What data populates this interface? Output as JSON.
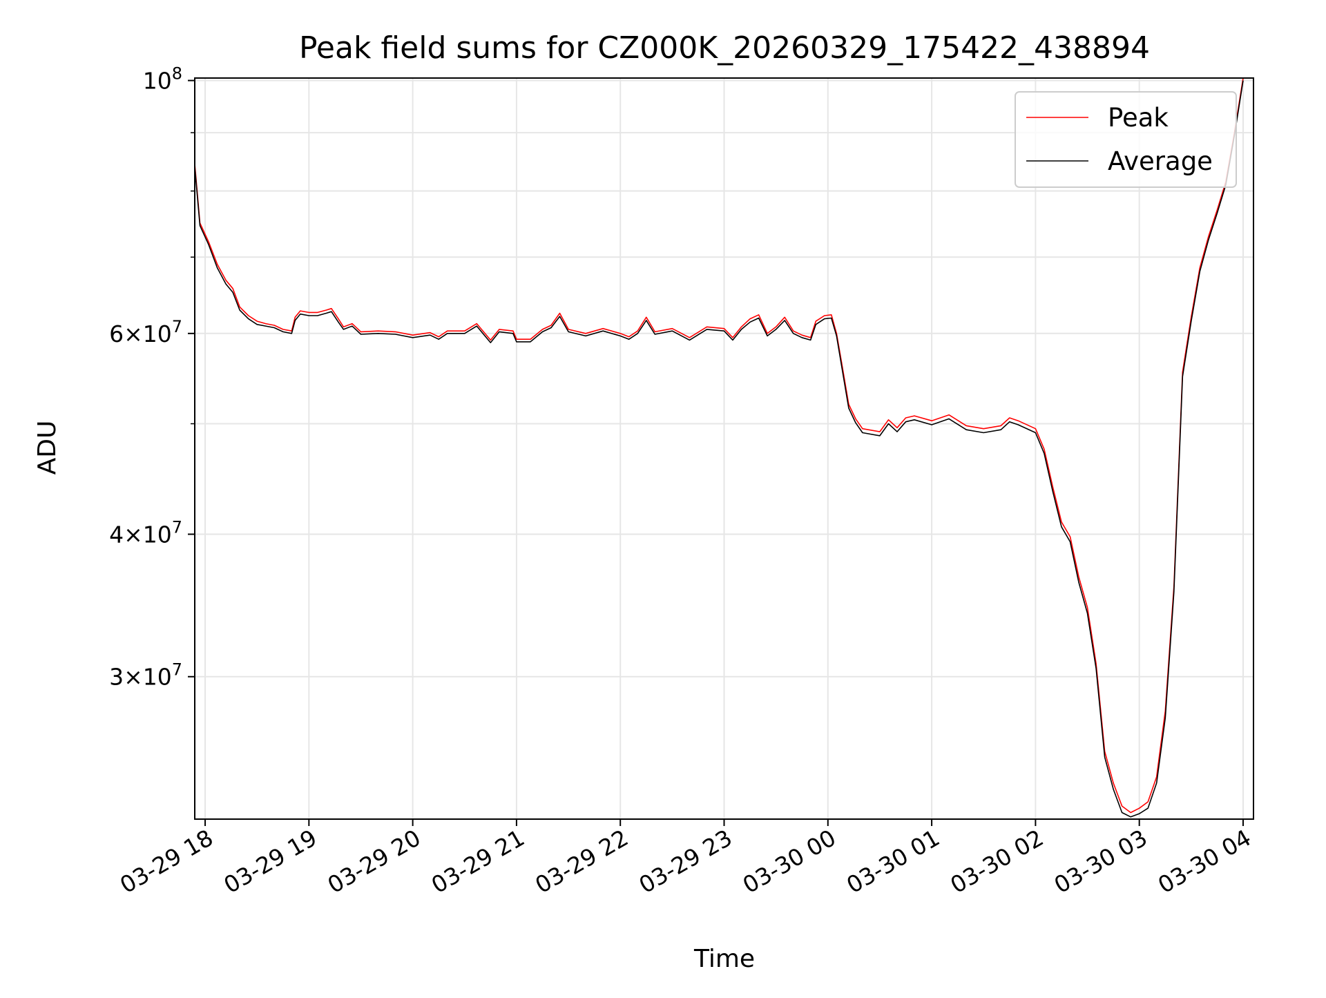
{
  "chart_data": {
    "type": "line",
    "title": "Peak field sums for CZ000K_20260329_175422_438894",
    "xlabel": "Time",
    "ylabel": "ADU",
    "y_scale": "log",
    "ylim": [
      22500000,
      100500000
    ],
    "x_range": [
      "2026-03-29 17:54",
      "2026-03-30 04:06"
    ],
    "x_ticks": [
      {
        "t": "2026-03-29 18:00",
        "label": "03-29 18"
      },
      {
        "t": "2026-03-29 19:00",
        "label": "03-29 19"
      },
      {
        "t": "2026-03-29 20:00",
        "label": "03-29 20"
      },
      {
        "t": "2026-03-29 21:00",
        "label": "03-29 21"
      },
      {
        "t": "2026-03-29 22:00",
        "label": "03-29 22"
      },
      {
        "t": "2026-03-29 23:00",
        "label": "03-29 23"
      },
      {
        "t": "2026-03-30 00:00",
        "label": "03-30 00"
      },
      {
        "t": "2026-03-30 01:00",
        "label": "03-30 01"
      },
      {
        "t": "2026-03-30 02:00",
        "label": "03-30 02"
      },
      {
        "t": "2026-03-30 03:00",
        "label": "03-30 03"
      },
      {
        "t": "2026-03-30 04:00",
        "label": "03-30 04"
      }
    ],
    "y_major_ticks": [
      {
        "value": 30000000,
        "mantissa": "3",
        "exponent": "7"
      },
      {
        "value": 40000000,
        "mantissa": "4",
        "exponent": "7"
      },
      {
        "value": 60000000,
        "mantissa": "6",
        "exponent": "7"
      },
      {
        "value": 100000000,
        "mantissa": "",
        "exponent": "8"
      }
    ],
    "y_minor_ticks": [
      50000000,
      70000000,
      80000000,
      90000000
    ],
    "grid": true,
    "legend_position": "top-right",
    "series": [
      {
        "name": "Peak",
        "color": "#ff0000",
        "points": [
          [
            "2026-03-29 17:54",
            84500000
          ],
          [
            "2026-03-29 17:57",
            75000000
          ],
          [
            "2026-03-29 18:02",
            72200000
          ],
          [
            "2026-03-29 18:07",
            69000000
          ],
          [
            "2026-03-29 18:12",
            66800000
          ],
          [
            "2026-03-29 18:16",
            65700000
          ],
          [
            "2026-03-29 18:20",
            63300000
          ],
          [
            "2026-03-29 18:25",
            62200000
          ],
          [
            "2026-03-29 18:30",
            61500000
          ],
          [
            "2026-03-29 18:35",
            61200000
          ],
          [
            "2026-03-29 18:40",
            61000000
          ],
          [
            "2026-03-29 18:45",
            60500000
          ],
          [
            "2026-03-29 18:50",
            60300000
          ],
          [
            "2026-03-29 18:52",
            62000000
          ],
          [
            "2026-03-29 18:55",
            62800000
          ],
          [
            "2026-03-29 19:00",
            62600000
          ],
          [
            "2026-03-29 19:05",
            62600000
          ],
          [
            "2026-03-29 19:10",
            62900000
          ],
          [
            "2026-03-29 19:13",
            63100000
          ],
          [
            "2026-03-29 19:17",
            61800000
          ],
          [
            "2026-03-29 19:20",
            60800000
          ],
          [
            "2026-03-29 19:25",
            61200000
          ],
          [
            "2026-03-29 19:30",
            60200000
          ],
          [
            "2026-03-29 19:40",
            60300000
          ],
          [
            "2026-03-29 19:50",
            60200000
          ],
          [
            "2026-03-29 20:00",
            59800000
          ],
          [
            "2026-03-29 20:10",
            60100000
          ],
          [
            "2026-03-29 20:15",
            59600000
          ],
          [
            "2026-03-29 20:20",
            60300000
          ],
          [
            "2026-03-29 20:30",
            60300000
          ],
          [
            "2026-03-29 20:37",
            61200000
          ],
          [
            "2026-03-29 20:45",
            59200000
          ],
          [
            "2026-03-29 20:50",
            60500000
          ],
          [
            "2026-03-29 20:58",
            60300000
          ],
          [
            "2026-03-29 21:00",
            59300000
          ],
          [
            "2026-03-29 21:08",
            59300000
          ],
          [
            "2026-03-29 21:15",
            60500000
          ],
          [
            "2026-03-29 21:20",
            61000000
          ],
          [
            "2026-03-29 21:25",
            62500000
          ],
          [
            "2026-03-29 21:30",
            60500000
          ],
          [
            "2026-03-29 21:40",
            60000000
          ],
          [
            "2026-03-29 21:50",
            60600000
          ],
          [
            "2026-03-29 22:00",
            60000000
          ],
          [
            "2026-03-29 22:05",
            59600000
          ],
          [
            "2026-03-29 22:10",
            60300000
          ],
          [
            "2026-03-29 22:15",
            62000000
          ],
          [
            "2026-03-29 22:20",
            60200000
          ],
          [
            "2026-03-29 22:30",
            60600000
          ],
          [
            "2026-03-29 22:40",
            59500000
          ],
          [
            "2026-03-29 22:50",
            60800000
          ],
          [
            "2026-03-29 23:00",
            60600000
          ],
          [
            "2026-03-29 23:05",
            59500000
          ],
          [
            "2026-03-29 23:10",
            60800000
          ],
          [
            "2026-03-29 23:15",
            61800000
          ],
          [
            "2026-03-29 23:20",
            62300000
          ],
          [
            "2026-03-29 23:25",
            60000000
          ],
          [
            "2026-03-29 23:30",
            60800000
          ],
          [
            "2026-03-29 23:35",
            62000000
          ],
          [
            "2026-03-29 23:40",
            60300000
          ],
          [
            "2026-03-29 23:45",
            59800000
          ],
          [
            "2026-03-29 23:50",
            59500000
          ],
          [
            "2026-03-29 23:53",
            61500000
          ],
          [
            "2026-03-29 23:58",
            62200000
          ],
          [
            "2026-03-30 00:02",
            62300000
          ],
          [
            "2026-03-30 00:05",
            60000000
          ],
          [
            "2026-03-30 00:08",
            56500000
          ],
          [
            "2026-03-30 00:12",
            52000000
          ],
          [
            "2026-03-30 00:16",
            50500000
          ],
          [
            "2026-03-30 00:20",
            49500000
          ],
          [
            "2026-03-30 00:30",
            49200000
          ],
          [
            "2026-03-30 00:35",
            50400000
          ],
          [
            "2026-03-30 00:40",
            49600000
          ],
          [
            "2026-03-30 00:45",
            50600000
          ],
          [
            "2026-03-30 00:50",
            50800000
          ],
          [
            "2026-03-30 01:00",
            50300000
          ],
          [
            "2026-03-30 01:10",
            50900000
          ],
          [
            "2026-03-30 01:20",
            49800000
          ],
          [
            "2026-03-30 01:30",
            49500000
          ],
          [
            "2026-03-30 01:40",
            49800000
          ],
          [
            "2026-03-30 01:45",
            50600000
          ],
          [
            "2026-03-30 01:50",
            50300000
          ],
          [
            "2026-03-30 02:00",
            49500000
          ],
          [
            "2026-03-30 02:05",
            47500000
          ],
          [
            "2026-03-30 02:10",
            44000000
          ],
          [
            "2026-03-30 02:15",
            41000000
          ],
          [
            "2026-03-30 02:20",
            39800000
          ],
          [
            "2026-03-30 02:25",
            36700000
          ],
          [
            "2026-03-30 02:30",
            34500000
          ],
          [
            "2026-03-30 02:35",
            30800000
          ],
          [
            "2026-03-30 02:40",
            25800000
          ],
          [
            "2026-03-30 02:45",
            24200000
          ],
          [
            "2026-03-30 02:50",
            23100000
          ],
          [
            "2026-03-30 02:55",
            22800000
          ],
          [
            "2026-03-30 03:00",
            23000000
          ],
          [
            "2026-03-30 03:05",
            23300000
          ],
          [
            "2026-03-30 03:10",
            24500000
          ],
          [
            "2026-03-30 03:15",
            28000000
          ],
          [
            "2026-03-30 03:20",
            36000000
          ],
          [
            "2026-03-30 03:25",
            55500000
          ],
          [
            "2026-03-30 03:30",
            62000000
          ],
          [
            "2026-03-30 03:35",
            68500000
          ],
          [
            "2026-03-30 03:40",
            73000000
          ],
          [
            "2026-03-30 03:45",
            77000000
          ],
          [
            "2026-03-30 03:50",
            81500000
          ],
          [
            "2026-03-30 03:55",
            90000000
          ],
          [
            "2026-03-30 04:00",
            100500000
          ]
        ]
      },
      {
        "name": "Average",
        "color": "#000000",
        "points": [
          [
            "2026-03-29 17:54",
            84000000
          ],
          [
            "2026-03-29 17:57",
            74600000
          ],
          [
            "2026-03-29 18:02",
            71800000
          ],
          [
            "2026-03-29 18:07",
            68500000
          ],
          [
            "2026-03-29 18:12",
            66300000
          ],
          [
            "2026-03-29 18:16",
            65200000
          ],
          [
            "2026-03-29 18:20",
            62900000
          ],
          [
            "2026-03-29 18:25",
            61800000
          ],
          [
            "2026-03-29 18:30",
            61100000
          ],
          [
            "2026-03-29 18:35",
            60900000
          ],
          [
            "2026-03-29 18:40",
            60700000
          ],
          [
            "2026-03-29 18:45",
            60200000
          ],
          [
            "2026-03-29 18:50",
            60000000
          ],
          [
            "2026-03-29 18:52",
            61600000
          ],
          [
            "2026-03-29 18:55",
            62400000
          ],
          [
            "2026-03-29 19:00",
            62200000
          ],
          [
            "2026-03-29 19:05",
            62200000
          ],
          [
            "2026-03-29 19:10",
            62500000
          ],
          [
            "2026-03-29 19:13",
            62700000
          ],
          [
            "2026-03-29 19:17",
            61400000
          ],
          [
            "2026-03-29 19:20",
            60500000
          ],
          [
            "2026-03-29 19:25",
            60900000
          ],
          [
            "2026-03-29 19:30",
            59900000
          ],
          [
            "2026-03-29 19:40",
            60000000
          ],
          [
            "2026-03-29 19:50",
            59900000
          ],
          [
            "2026-03-29 20:00",
            59500000
          ],
          [
            "2026-03-29 20:10",
            59800000
          ],
          [
            "2026-03-29 20:15",
            59300000
          ],
          [
            "2026-03-29 20:20",
            60000000
          ],
          [
            "2026-03-29 20:30",
            60000000
          ],
          [
            "2026-03-29 20:37",
            60900000
          ],
          [
            "2026-03-29 20:45",
            58900000
          ],
          [
            "2026-03-29 20:50",
            60200000
          ],
          [
            "2026-03-29 20:58",
            60000000
          ],
          [
            "2026-03-29 21:00",
            59000000
          ],
          [
            "2026-03-29 21:08",
            59000000
          ],
          [
            "2026-03-29 21:15",
            60200000
          ],
          [
            "2026-03-29 21:20",
            60700000
          ],
          [
            "2026-03-29 21:25",
            62100000
          ],
          [
            "2026-03-29 21:30",
            60200000
          ],
          [
            "2026-03-29 21:40",
            59700000
          ],
          [
            "2026-03-29 21:50",
            60300000
          ],
          [
            "2026-03-29 22:00",
            59700000
          ],
          [
            "2026-03-29 22:05",
            59300000
          ],
          [
            "2026-03-29 22:10",
            60000000
          ],
          [
            "2026-03-29 22:15",
            61600000
          ],
          [
            "2026-03-29 22:20",
            59900000
          ],
          [
            "2026-03-29 22:30",
            60300000
          ],
          [
            "2026-03-29 22:40",
            59200000
          ],
          [
            "2026-03-29 22:50",
            60500000
          ],
          [
            "2026-03-29 23:00",
            60300000
          ],
          [
            "2026-03-29 23:05",
            59200000
          ],
          [
            "2026-03-29 23:10",
            60500000
          ],
          [
            "2026-03-29 23:15",
            61400000
          ],
          [
            "2026-03-29 23:20",
            61900000
          ],
          [
            "2026-03-29 23:25",
            59700000
          ],
          [
            "2026-03-29 23:30",
            60500000
          ],
          [
            "2026-03-29 23:35",
            61600000
          ],
          [
            "2026-03-29 23:40",
            60000000
          ],
          [
            "2026-03-29 23:45",
            59500000
          ],
          [
            "2026-03-29 23:50",
            59200000
          ],
          [
            "2026-03-29 23:53",
            61100000
          ],
          [
            "2026-03-29 23:58",
            61800000
          ],
          [
            "2026-03-30 00:02",
            61900000
          ],
          [
            "2026-03-30 00:05",
            59700000
          ],
          [
            "2026-03-30 00:08",
            56100000
          ],
          [
            "2026-03-30 00:12",
            51600000
          ],
          [
            "2026-03-30 00:16",
            50100000
          ],
          [
            "2026-03-30 00:20",
            49100000
          ],
          [
            "2026-03-30 00:30",
            48800000
          ],
          [
            "2026-03-30 00:35",
            50000000
          ],
          [
            "2026-03-30 00:40",
            49200000
          ],
          [
            "2026-03-30 00:45",
            50200000
          ],
          [
            "2026-03-30 00:50",
            50400000
          ],
          [
            "2026-03-30 01:00",
            49900000
          ],
          [
            "2026-03-30 01:10",
            50500000
          ],
          [
            "2026-03-30 01:20",
            49400000
          ],
          [
            "2026-03-30 01:30",
            49100000
          ],
          [
            "2026-03-30 01:40",
            49400000
          ],
          [
            "2026-03-30 01:45",
            50200000
          ],
          [
            "2026-03-30 01:50",
            49900000
          ],
          [
            "2026-03-30 02:00",
            49100000
          ],
          [
            "2026-03-30 02:05",
            47100000
          ],
          [
            "2026-03-30 02:10",
            43600000
          ],
          [
            "2026-03-30 02:15",
            40600000
          ],
          [
            "2026-03-30 02:20",
            39400000
          ],
          [
            "2026-03-30 02:25",
            36300000
          ],
          [
            "2026-03-30 02:30",
            34100000
          ],
          [
            "2026-03-30 02:35",
            30500000
          ],
          [
            "2026-03-30 02:40",
            25500000
          ],
          [
            "2026-03-30 02:45",
            23900000
          ],
          [
            "2026-03-30 02:50",
            22800000
          ],
          [
            "2026-03-30 02:55",
            22600000
          ],
          [
            "2026-03-30 03:00",
            22750000
          ],
          [
            "2026-03-30 03:05",
            23000000
          ],
          [
            "2026-03-30 03:10",
            24200000
          ],
          [
            "2026-03-30 03:15",
            27600000
          ],
          [
            "2026-03-30 03:20",
            35600000
          ],
          [
            "2026-03-30 03:25",
            55000000
          ],
          [
            "2026-03-30 03:30",
            61500000
          ],
          [
            "2026-03-30 03:35",
            68000000
          ],
          [
            "2026-03-30 03:40",
            72500000
          ],
          [
            "2026-03-30 03:45",
            76500000
          ],
          [
            "2026-03-30 03:50",
            81000000
          ],
          [
            "2026-03-30 03:55",
            89500000
          ],
          [
            "2026-03-30 04:00",
            100000000
          ]
        ]
      }
    ]
  }
}
